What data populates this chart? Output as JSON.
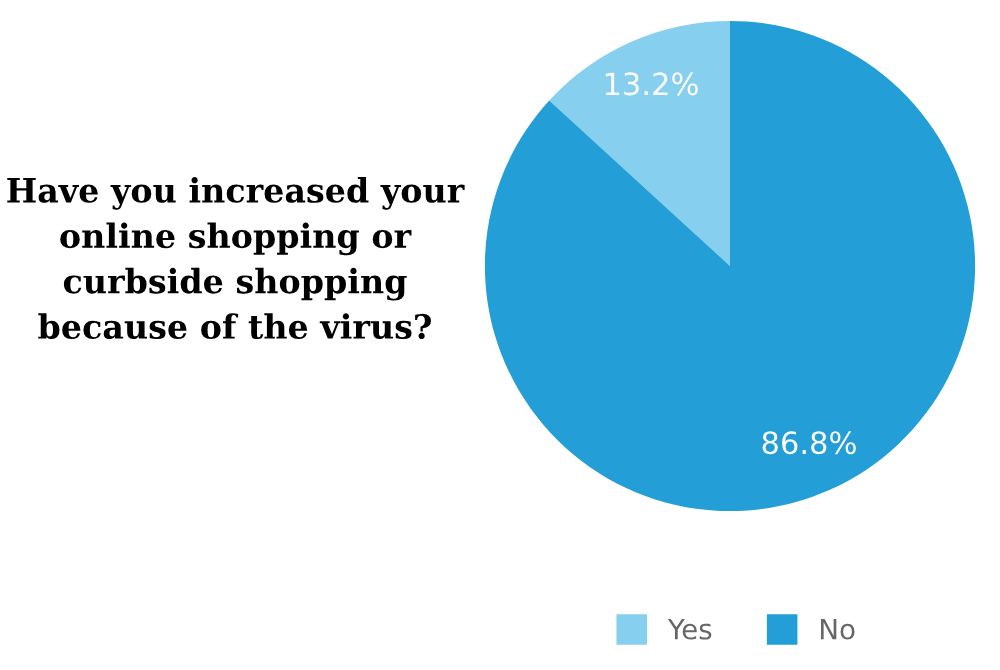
{
  "chart_data": {
    "type": "pie",
    "title": "Have you increased your online shopping or curbside shopping because of the virus?",
    "categories": [
      "Yes",
      "No"
    ],
    "values": [
      13.2,
      86.8
    ],
    "colors": [
      "#87cfee",
      "#239ed6"
    ],
    "value_labels": [
      "13.2%",
      "86.8%"
    ],
    "legend": "bottom"
  }
}
